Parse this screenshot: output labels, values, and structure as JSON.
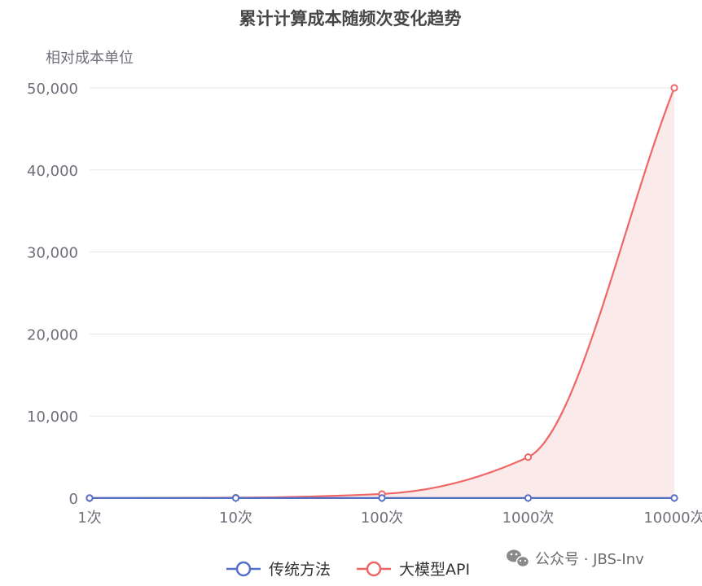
{
  "chart_data": {
    "type": "line",
    "title": "累计计算成本随频次变化趋势",
    "ylabel": "相对成本单位",
    "xlabel": "",
    "categories": [
      "1次",
      "10次",
      "100次",
      "1000次",
      "10000次"
    ],
    "ylim": [
      0,
      50000
    ],
    "yticks": [
      "0",
      "10,000",
      "20,000",
      "30,000",
      "40,000",
      "50,000"
    ],
    "ytick_values": [
      0,
      10000,
      20000,
      30000,
      40000,
      50000
    ],
    "grid": true,
    "legend_position": "bottom-center",
    "series": [
      {
        "name": "传统方法",
        "values": [
          10,
          10,
          10,
          10,
          10
        ],
        "color": "#5470c6",
        "smooth": true,
        "area": false
      },
      {
        "name": "大模型API",
        "values": [
          5,
          50,
          500,
          5000,
          50000
        ],
        "color": "#ee6666",
        "smooth": true,
        "area": true,
        "area_color": "#fbeaea"
      }
    ]
  },
  "watermark": {
    "icon": "wechat-icon",
    "text": "公众号 · JBS-Inv"
  }
}
